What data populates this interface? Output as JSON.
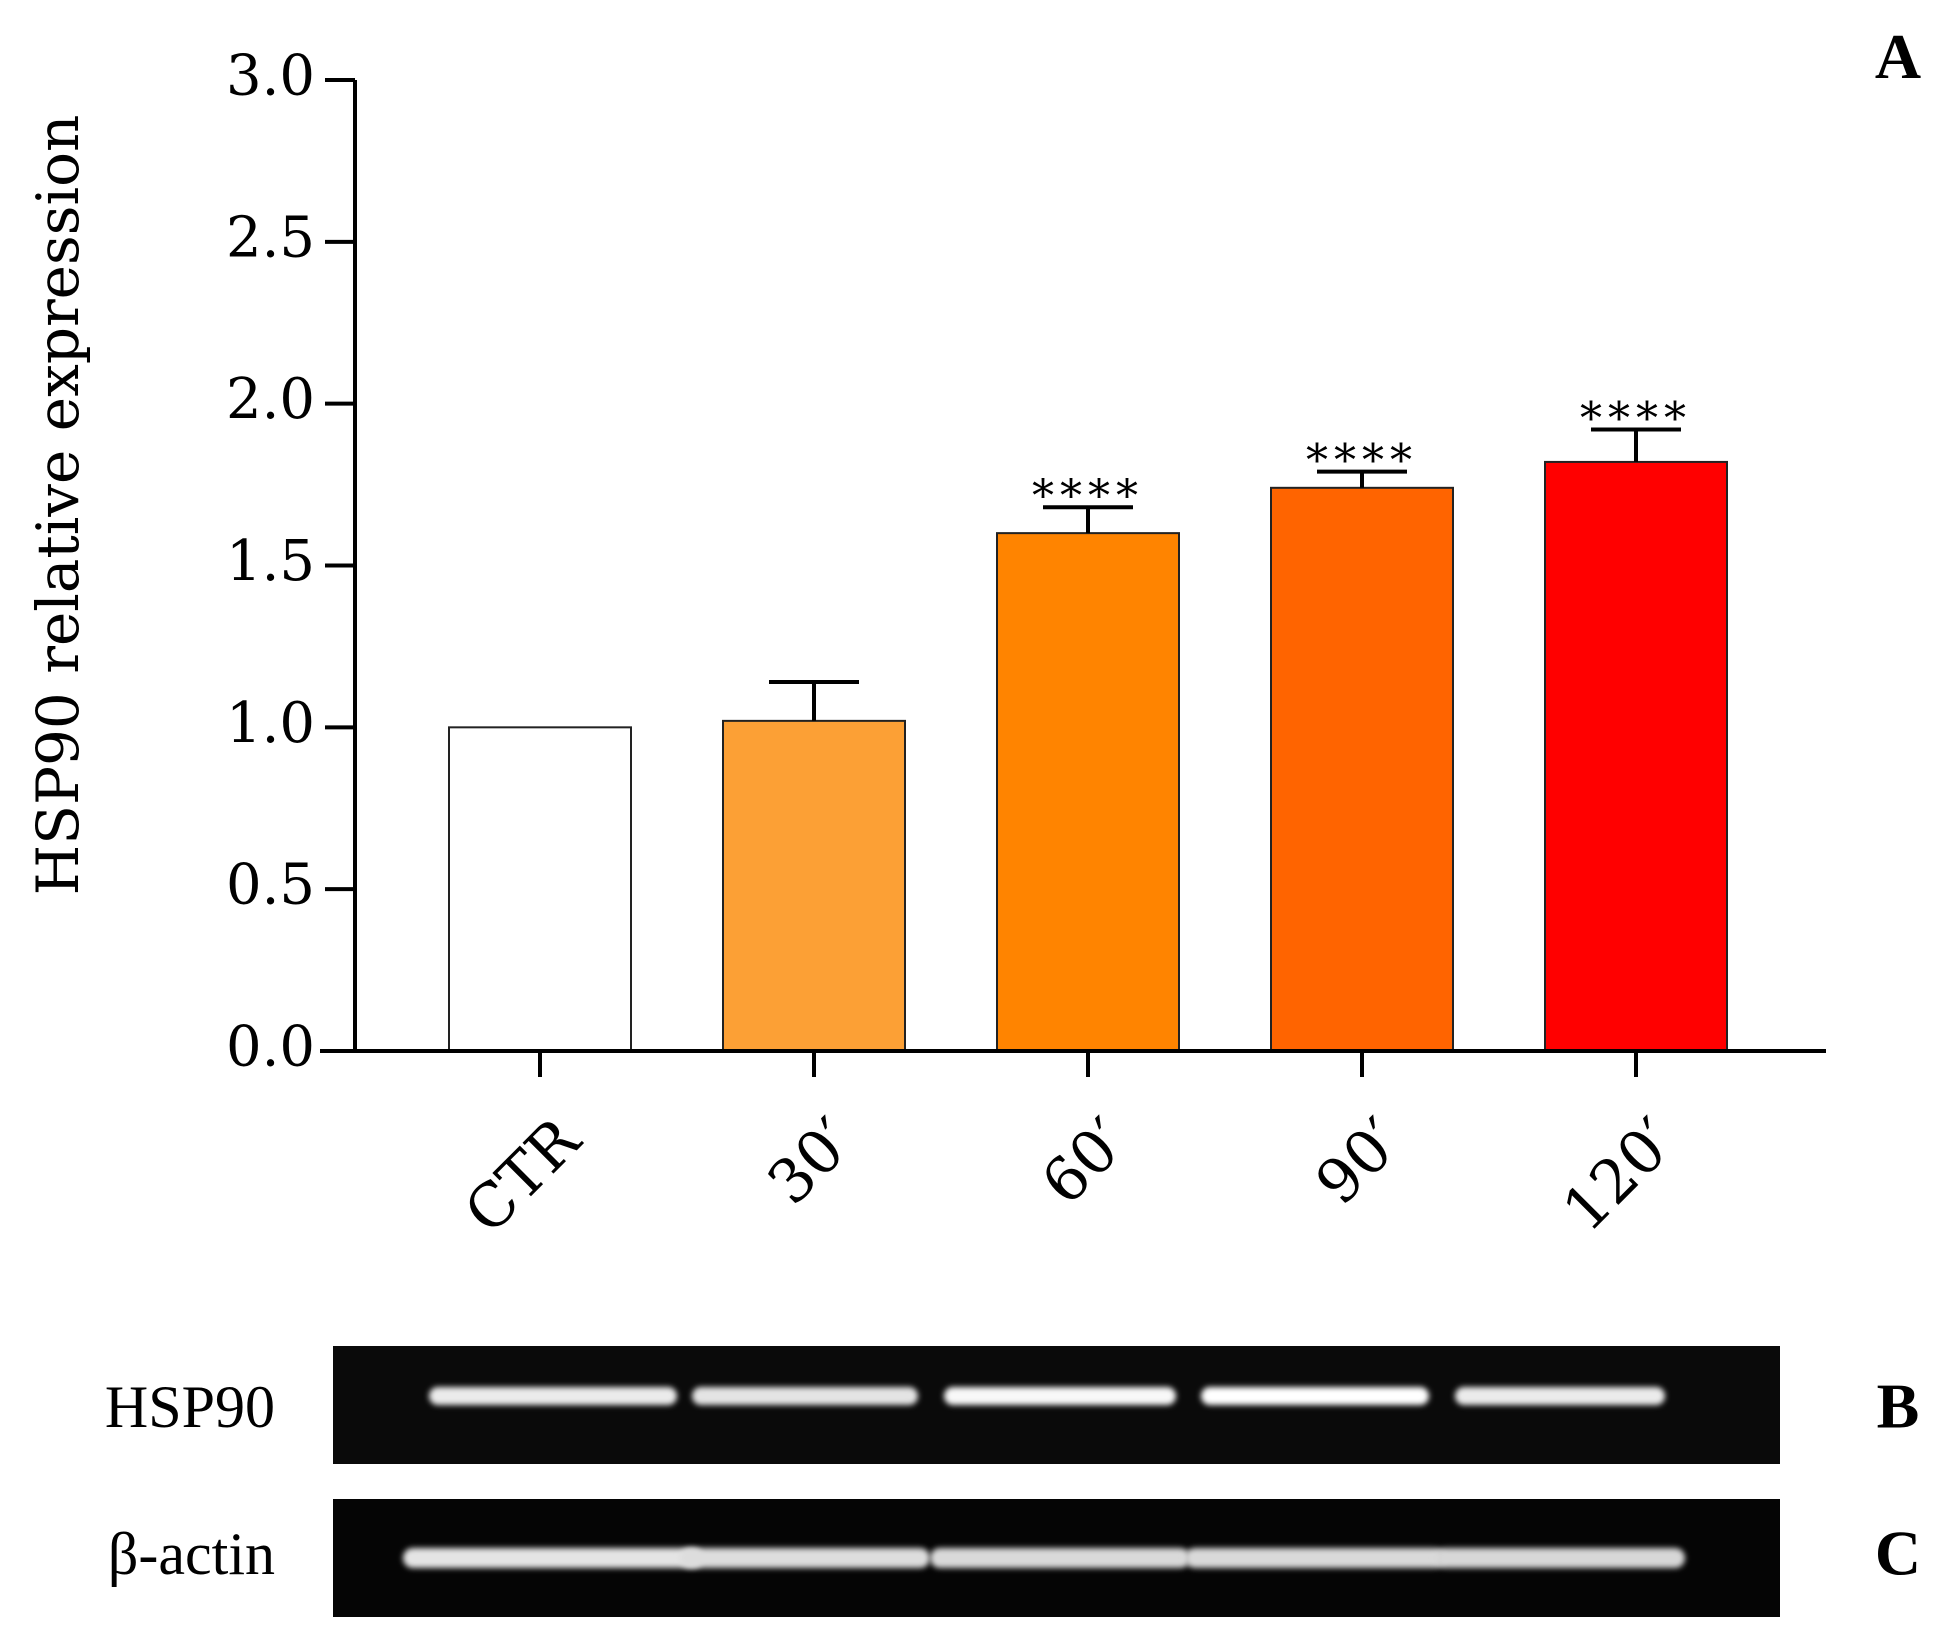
{
  "panels": {
    "a": {
      "letter": "A"
    },
    "b": {
      "letter": "B",
      "label": "HSP90"
    },
    "c": {
      "letter": "C",
      "label": "β-actin"
    }
  },
  "chart_data": {
    "type": "bar",
    "ylabel": "HSP90 relative expression",
    "xlabel": "",
    "ylim": [
      0,
      3.0
    ],
    "y_ticks": [
      "0.0",
      "0.5",
      "1.0",
      "1.5",
      "2.0",
      "2.5",
      "3.0"
    ],
    "categories": [
      "CTR",
      "30′",
      "60′",
      "90′",
      "120′"
    ],
    "values": [
      1.0,
      1.02,
      1.6,
      1.74,
      1.82
    ],
    "error": [
      0,
      0.12,
      0.08,
      0.05,
      0.1
    ],
    "significance": [
      "",
      "",
      "****",
      "****",
      "****"
    ],
    "colors": [
      "#ffffff",
      "#fca035",
      "#ff8400",
      "#ff6400",
      "#ff0000"
    ],
    "grid": false
  },
  "gels": {
    "hsp90_band_intensity": [
      0.85,
      0.8,
      0.95,
      1.0,
      0.85
    ],
    "actin_band_intensity": [
      0.8,
      0.75,
      0.72,
      0.72,
      0.7
    ]
  }
}
